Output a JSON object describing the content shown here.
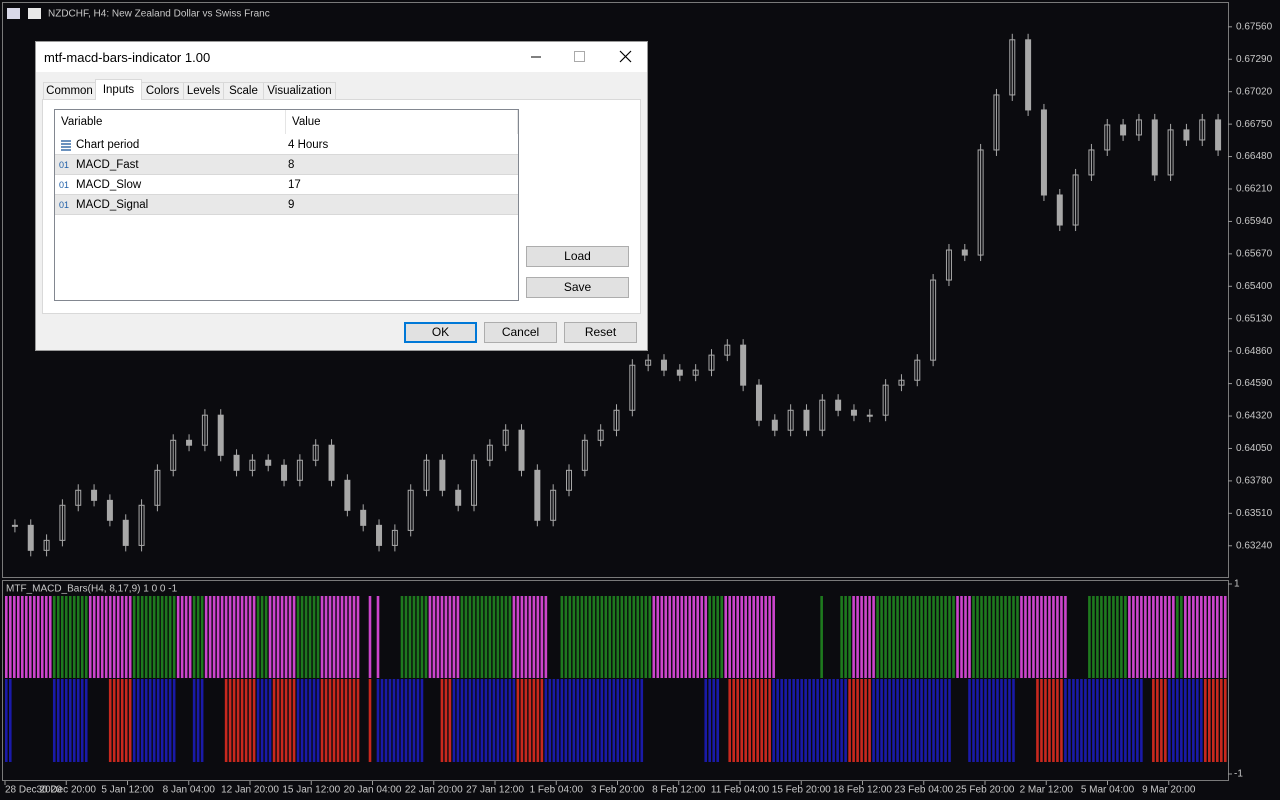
{
  "window": {
    "title": "NZDCHF, H4:  New Zealand Dollar vs Swiss Franc"
  },
  "price_chart": {
    "type": "candlestick",
    "color": "#a8a8a8",
    "closes": [
      0.6341,
      0.63202,
      0.63285,
      0.63577,
      0.63702,
      0.63618,
      0.63452,
      0.63243,
      0.63577,
      0.63868,
      0.64118,
      0.64077,
      0.64327,
      0.63993,
      0.63868,
      0.63952,
      0.6391,
      0.63785,
      0.63952,
      0.64077,
      0.63785,
      0.63535,
      0.6341,
      0.63243,
      0.63368,
      0.63702,
      0.63952,
      0.63702,
      0.63577,
      0.63952,
      0.64077,
      0.64202,
      0.63868,
      0.63452,
      0.63702,
      0.63868,
      0.64118,
      0.64202,
      0.64368,
      0.64743,
      0.64785,
      0.64702,
      0.6466,
      0.64702,
      0.64827,
      0.6491,
      0.64577,
      0.64285,
      0.64202,
      0.64368,
      0.64202,
      0.64452,
      0.64368,
      0.64327,
      0.64327,
      0.64577,
      0.64618,
      0.64785,
      0.65452,
      0.65702,
      0.6566,
      0.66535,
      0.66993,
      0.67452,
      0.66868,
      0.6616,
      0.6591,
      0.66327,
      0.66535,
      0.66743,
      0.6666,
      0.66785,
      0.66327,
      0.66702,
      0.66618,
      0.66785,
      0.66535
    ],
    "ylim": [
      0.6298,
      0.6775
    ],
    "yticks": [
      {
        "value": 0.6756,
        "label": "0.67560"
      },
      {
        "value": 0.6729,
        "label": "0.67290"
      },
      {
        "value": 0.6702,
        "label": "0.67020"
      },
      {
        "value": 0.6675,
        "label": "0.66750"
      },
      {
        "value": 0.6648,
        "label": "0.66480"
      },
      {
        "value": 0.6621,
        "label": "0.66210"
      },
      {
        "value": 0.6594,
        "label": "0.65940"
      },
      {
        "value": 0.6567,
        "label": "0.65670"
      },
      {
        "value": 0.654,
        "label": "0.65400"
      },
      {
        "value": 0.6513,
        "label": "0.65130"
      },
      {
        "value": 0.6486,
        "label": "0.64860"
      },
      {
        "value": 0.6459,
        "label": "0.64590"
      },
      {
        "value": 0.6432,
        "label": "0.64320"
      },
      {
        "value": 0.6405,
        "label": "0.64050"
      },
      {
        "value": 0.6378,
        "label": "0.63780"
      },
      {
        "value": 0.6351,
        "label": "0.63510"
      },
      {
        "value": 0.6324,
        "label": "0.63240"
      }
    ],
    "categories": [
      "28 Dec 2020",
      "30 Dec 20:00",
      "5 Jan 12:00",
      "8 Jan 04:00",
      "12 Jan 20:00",
      "15 Jan 12:00",
      "20 Jan 04:00",
      "22 Jan 20:00",
      "27 Jan 12:00",
      "1 Feb 04:00",
      "3 Feb 20:00",
      "8 Feb 12:00",
      "11 Feb 04:00",
      "15 Feb 20:00",
      "18 Feb 12:00",
      "23 Feb 04:00",
      "25 Feb 20:00",
      "2 Mar 12:00",
      "5 Mar 04:00",
      "9 Mar 20:00"
    ]
  },
  "indicator": {
    "label": "MTF_MACD_Bars(H4, 8,17,9) 1 0 0 -1",
    "ylim": [
      -1,
      1
    ],
    "yticks": [
      1,
      -1
    ],
    "upper_runs": [
      {
        "color": "#cc44cc",
        "bars": 12
      },
      {
        "color": "#1e7a1e",
        "bars": 9
      },
      {
        "color": "#cc44cc",
        "bars": 11
      },
      {
        "color": "#1e7a1e",
        "bars": 11
      },
      {
        "color": "#cc44cc",
        "bars": 4
      },
      {
        "color": "#1e7a1e",
        "bars": 3
      },
      {
        "color": "#cc44cc",
        "bars": 13
      },
      {
        "color": "#1e7a1e",
        "bars": 3
      },
      {
        "color": "#cc44cc",
        "bars": 7
      },
      {
        "color": "#1e7a1e",
        "bars": 6
      },
      {
        "color": "#cc44cc",
        "bars": 10
      },
      {
        "color": null,
        "bars": 2
      },
      {
        "color": "#cc44cc",
        "bars": 1
      },
      {
        "color": null,
        "bars": 1
      },
      {
        "color": "#cc44cc",
        "bars": 1
      },
      {
        "color": null,
        "bars": 5
      },
      {
        "color": "#1e7a1e",
        "bars": 7
      },
      {
        "color": "#cc44cc",
        "bars": 8
      },
      {
        "color": "#1e7a1e",
        "bars": 13
      },
      {
        "color": "#cc44cc",
        "bars": 9
      },
      {
        "color": null,
        "bars": 3
      },
      {
        "color": "#1e7a1e",
        "bars": 14
      },
      {
        "color": "#1e7a1e",
        "bars": 9
      },
      {
        "color": "#cc44cc",
        "bars": 14
      },
      {
        "color": "#1e7a1e",
        "bars": 4
      },
      {
        "color": "#cc44cc",
        "bars": 13
      },
      {
        "color": null,
        "bars": 11
      },
      {
        "color": "#1e7a1e",
        "bars": 1
      },
      {
        "color": null,
        "bars": 4
      },
      {
        "color": "#1e7a1e",
        "bars": 3
      },
      {
        "color": "#cc44cc",
        "bars": 6
      },
      {
        "color": "#1e7a1e",
        "bars": 20
      },
      {
        "color": "#cc44cc",
        "bars": 4
      },
      {
        "color": "#1e7a1e",
        "bars": 12
      },
      {
        "color": "#cc44cc",
        "bars": 12
      },
      {
        "color": null,
        "bars": 5
      },
      {
        "color": "#1e7a1e",
        "bars": 10
      },
      {
        "color": "#cc44cc",
        "bars": 5
      },
      {
        "color": "#cc44cc",
        "bars": 7
      },
      {
        "color": "#1e7a1e",
        "bars": 2
      },
      {
        "color": "#cc44cc",
        "bars": 11
      }
    ],
    "lower_runs": [
      {
        "color": "#1a1aa8",
        "bars": 2
      },
      {
        "color": null,
        "bars": 10
      },
      {
        "color": "#1a1aa8",
        "bars": 9
      },
      {
        "color": null,
        "bars": 5
      },
      {
        "color": "#c8281e",
        "bars": 6
      },
      {
        "color": "#1a1aa8",
        "bars": 11
      },
      {
        "color": null,
        "bars": 4
      },
      {
        "color": "#1a1aa8",
        "bars": 3
      },
      {
        "color": null,
        "bars": 5
      },
      {
        "color": "#c8281e",
        "bars": 8
      },
      {
        "color": "#1a1aa8",
        "bars": 4
      },
      {
        "color": "#c8281e",
        "bars": 6
      },
      {
        "color": "#1a1aa8",
        "bars": 6
      },
      {
        "color": "#c8281e",
        "bars": 10
      },
      {
        "color": null,
        "bars": 2
      },
      {
        "color": "#c8281e",
        "bars": 1
      },
      {
        "color": null,
        "bars": 1
      },
      {
        "color": "#1a1aa8",
        "bars": 12
      },
      {
        "color": null,
        "bars": 4
      },
      {
        "color": "#c8281e",
        "bars": 3
      },
      {
        "color": "#1a1aa8",
        "bars": 16
      },
      {
        "color": "#c8281e",
        "bars": 7
      },
      {
        "color": "#1a1aa8",
        "bars": 17
      },
      {
        "color": "#1a1aa8",
        "bars": 8
      },
      {
        "color": null,
        "bars": 15
      },
      {
        "color": "#1a1aa8",
        "bars": 4
      },
      {
        "color": null,
        "bars": 2
      },
      {
        "color": "#c8281e",
        "bars": 11
      },
      {
        "color": "#1a1aa8",
        "bars": 19
      },
      {
        "color": "#c8281e",
        "bars": 6
      },
      {
        "color": "#1a1aa8",
        "bars": 20
      },
      {
        "color": null,
        "bars": 4
      },
      {
        "color": "#1a1aa8",
        "bars": 12
      },
      {
        "color": null,
        "bars": 5
      },
      {
        "color": "#c8281e",
        "bars": 7
      },
      {
        "color": "#1a1aa8",
        "bars": 16
      },
      {
        "color": "#1a1aa8",
        "bars": 4
      },
      {
        "color": null,
        "bars": 2
      },
      {
        "color": "#c8281e",
        "bars": 4
      },
      {
        "color": "#1a1aa8",
        "bars": 3
      },
      {
        "color": "#1a1aa8",
        "bars": 6
      },
      {
        "color": "#c8281e",
        "bars": 6
      }
    ]
  },
  "dialog": {
    "title": "mtf-macd-bars-indicator 1.00",
    "tabs": [
      "Common",
      "Inputs",
      "Colors",
      "Levels",
      "Scale",
      "Visualization"
    ],
    "table": {
      "headers": [
        "Variable",
        "Value"
      ],
      "rows": [
        {
          "name": "Chart period",
          "value": "4 Hours"
        },
        {
          "icon": "01",
          "name": "MACD_Fast",
          "value": 8
        },
        {
          "icon": "01",
          "name": "MACD_Slow",
          "value": 17
        },
        {
          "icon": "01",
          "name": "MACD_Signal",
          "value": 9
        }
      ]
    },
    "buttons": [
      "Load",
      "Save",
      "OK",
      "Cancel",
      "Reset"
    ]
  }
}
